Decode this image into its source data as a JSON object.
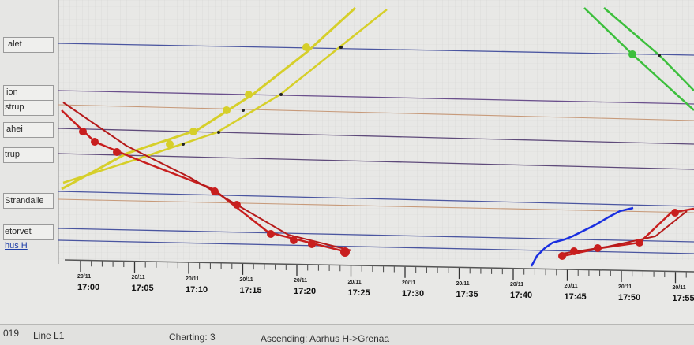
{
  "stations": [
    {
      "label": "alet"
    },
    {
      "label": "ion"
    },
    {
      "label": "strup"
    },
    {
      "label": "ahei"
    },
    {
      "label": "trup"
    },
    {
      "label": "Strandalle"
    },
    {
      "label": "etorvet"
    },
    {
      "label": "hus H"
    }
  ],
  "time_axis": {
    "date": "20/11",
    "ticks": [
      "17:00",
      "17:05",
      "17:10",
      "17:15",
      "17:20",
      "17:25",
      "17:30",
      "17:35",
      "17:40",
      "17:45",
      "17:50",
      "17:55"
    ]
  },
  "status_bar": {
    "left_fragment": "019",
    "line": "Line L1",
    "charting": "Charting: 3",
    "direction": "Ascending: Aarhus H->Grenaa"
  },
  "colors": {
    "background": "#ececea",
    "grid": "#d0d0d0",
    "station_line_blue": "#4a55a0",
    "station_line_brown": "#c79a7a",
    "train_red": "#c81e1e",
    "train_yellow": "#d6cf2a",
    "train_green": "#3cbf3c",
    "train_blue": "#1a2fe0"
  }
}
